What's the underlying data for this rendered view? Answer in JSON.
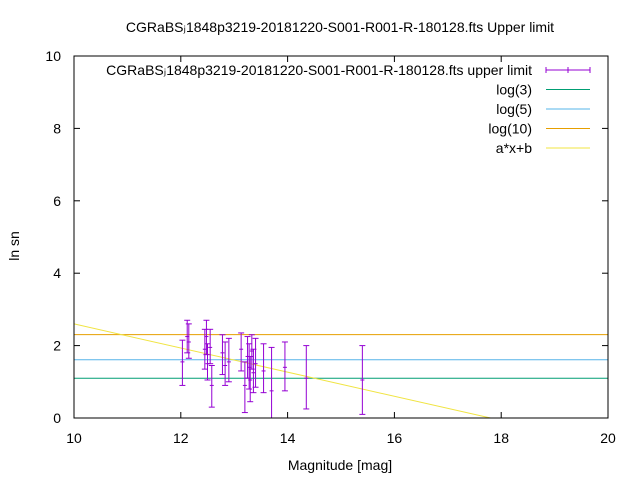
{
  "chart_data": {
    "type": "scatter",
    "title": "CGRaBSⱼ1848p3219-20181220-S001-R001-R-180128.fts Upper limit",
    "xlabel": "Magnitude [mag]",
    "ylabel": "ln sn",
    "xlim": [
      10,
      20
    ],
    "ylim": [
      0,
      10
    ],
    "xticks": [
      "10",
      "12",
      "14",
      "16",
      "18",
      "20"
    ],
    "yticks": [
      "0",
      "2",
      "4",
      "6",
      "8",
      "10"
    ],
    "grid": false,
    "legend_position": "top-right",
    "series": [
      {
        "name": "CGRaBSⱼ1848p3219-20181220-S001-R001-R-180128.fts upper limit",
        "type": "errorbars",
        "color": "#9400d3",
        "points": [
          {
            "x": 12.03,
            "y": 1.55,
            "ylo": 0.9,
            "yhi": 2.15
          },
          {
            "x": 12.12,
            "y": 2.25,
            "ylo": 1.8,
            "yhi": 2.7
          },
          {
            "x": 12.15,
            "y": 2.1,
            "ylo": 1.65,
            "yhi": 2.6
          },
          {
            "x": 12.45,
            "y": 1.9,
            "ylo": 1.35,
            "yhi": 2.45
          },
          {
            "x": 12.48,
            "y": 2.25,
            "ylo": 1.75,
            "yhi": 2.7
          },
          {
            "x": 12.5,
            "y": 1.5,
            "ylo": 1.05,
            "yhi": 2.05
          },
          {
            "x": 12.55,
            "y": 1.95,
            "ylo": 1.5,
            "yhi": 2.45
          },
          {
            "x": 12.58,
            "y": 0.9,
            "ylo": 0.3,
            "yhi": 1.45
          },
          {
            "x": 12.78,
            "y": 1.8,
            "ylo": 1.2,
            "yhi": 2.3
          },
          {
            "x": 12.83,
            "y": 1.45,
            "ylo": 0.9,
            "yhi": 2.1
          },
          {
            "x": 12.9,
            "y": 1.55,
            "ylo": 1.0,
            "yhi": 2.2
          },
          {
            "x": 13.13,
            "y": 1.9,
            "ylo": 1.3,
            "yhi": 2.35
          },
          {
            "x": 13.2,
            "y": 0.9,
            "ylo": 0.15,
            "yhi": 1.55
          },
          {
            "x": 13.25,
            "y": 1.7,
            "ylo": 1.1,
            "yhi": 2.25
          },
          {
            "x": 13.28,
            "y": 1.4,
            "ylo": 0.8,
            "yhi": 2.05
          },
          {
            "x": 13.3,
            "y": 1.05,
            "ylo": 0.45,
            "yhi": 1.7
          },
          {
            "x": 13.33,
            "y": 1.85,
            "ylo": 1.35,
            "yhi": 2.3
          },
          {
            "x": 13.36,
            "y": 1.25,
            "ylo": 0.7,
            "yhi": 1.9
          },
          {
            "x": 13.4,
            "y": 1.5,
            "ylo": 0.85,
            "yhi": 2.2
          },
          {
            "x": 13.55,
            "y": 1.3,
            "ylo": 0.7,
            "yhi": 2.05
          },
          {
            "x": 13.7,
            "y": 0.75,
            "ylo": 0.0,
            "yhi": 1.95
          },
          {
            "x": 13.95,
            "y": 1.4,
            "ylo": 0.75,
            "yhi": 2.1
          },
          {
            "x": 14.35,
            "y": 1.1,
            "ylo": 0.25,
            "yhi": 2.0
          },
          {
            "x": 15.4,
            "y": 1.05,
            "ylo": 0.1,
            "yhi": 2.0
          }
        ]
      },
      {
        "name": "log(3)",
        "type": "hline",
        "color": "#009e73",
        "y": 1.0986
      },
      {
        "name": "log(5)",
        "type": "hline",
        "color": "#56b4e9",
        "y": 1.6094
      },
      {
        "name": "log(10)",
        "type": "hline",
        "color": "#e69f00",
        "y": 2.3026
      },
      {
        "name": "a*x+b",
        "type": "line",
        "color": "#f0e442",
        "x": [
          10,
          17.8
        ],
        "y": [
          2.6,
          0.0
        ]
      }
    ]
  }
}
